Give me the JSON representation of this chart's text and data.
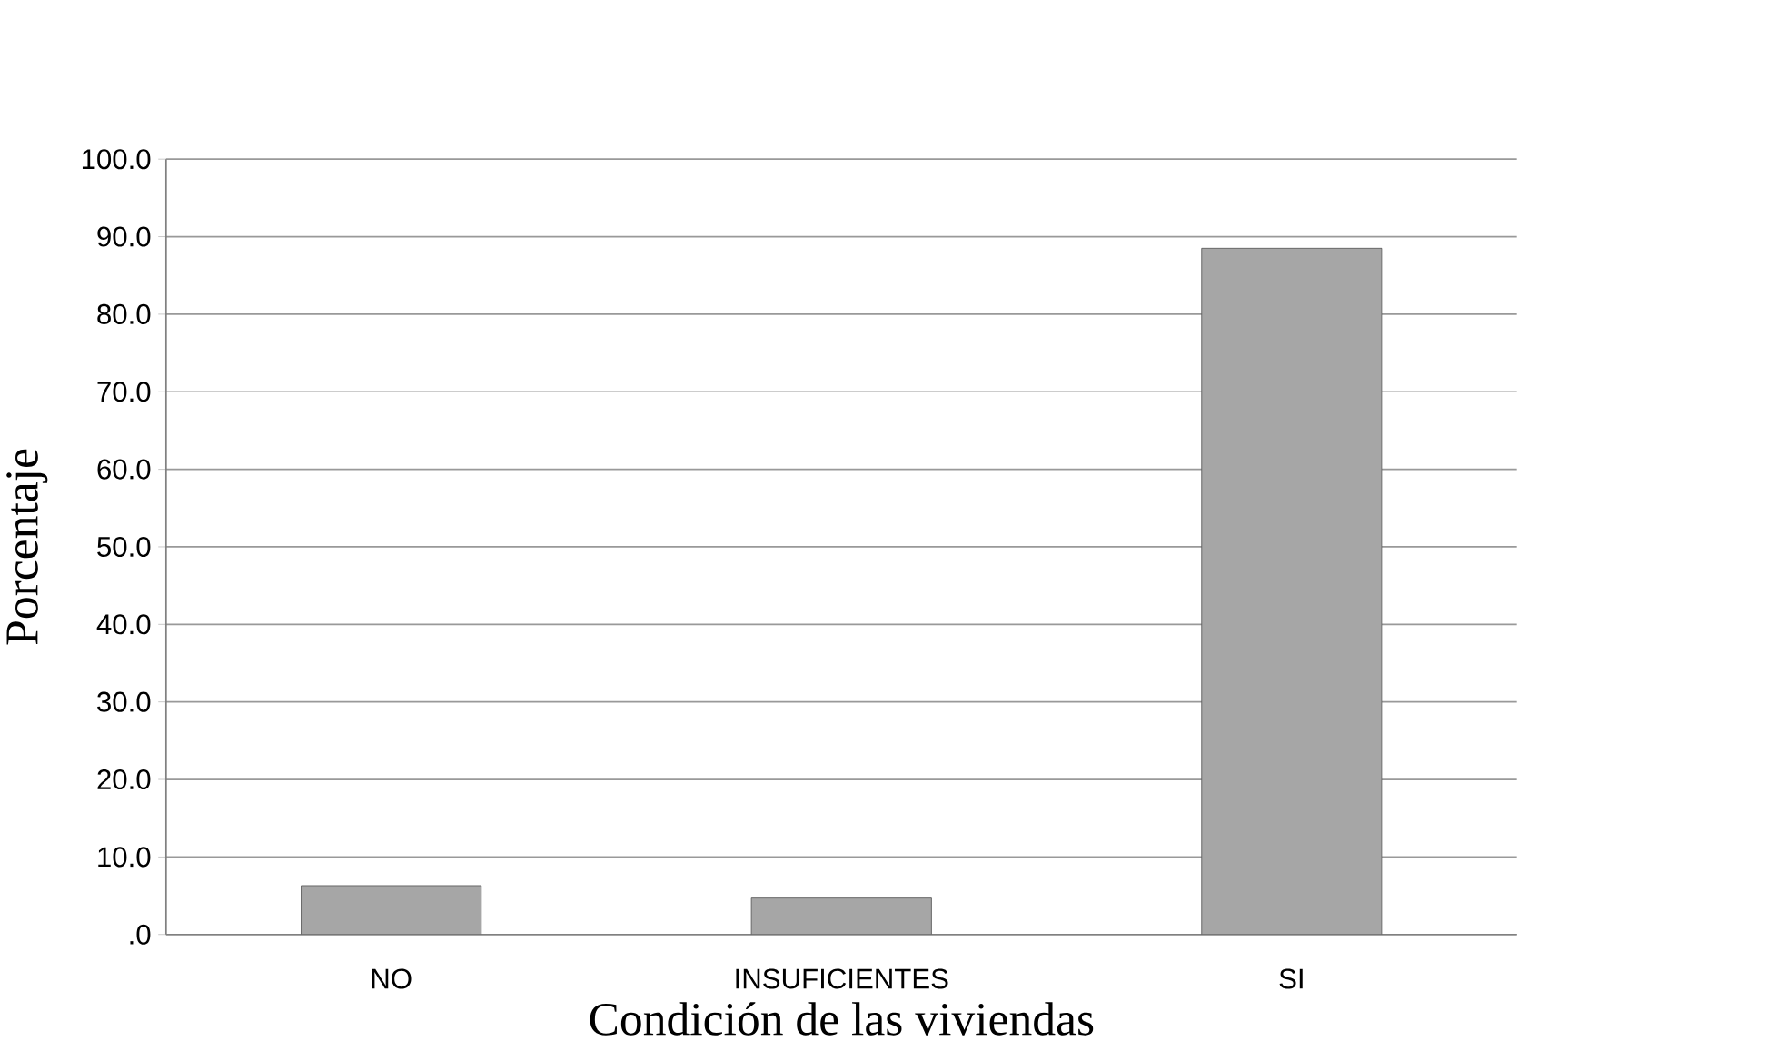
{
  "chart_data": {
    "type": "bar",
    "xlabel": "Condición de las viviendas",
    "ylabel": "Porcentaje",
    "categories": [
      "NO",
      "INSUFICIENTES",
      "SI"
    ],
    "values": [
      6.3,
      4.7,
      88.5
    ],
    "color": "#a6a6a6",
    "ylim": [
      0,
      100
    ],
    "yticks": [
      {
        "value": 0,
        "label": ".0"
      },
      {
        "value": 10,
        "label": "10.0"
      },
      {
        "value": 20,
        "label": "20.0"
      },
      {
        "value": 30,
        "label": "30.0"
      },
      {
        "value": 40,
        "label": "40.0"
      },
      {
        "value": 50,
        "label": "50.0"
      },
      {
        "value": 60,
        "label": "60.0"
      },
      {
        "value": 70,
        "label": "70.0"
      },
      {
        "value": 80,
        "label": "80.0"
      },
      {
        "value": 90,
        "label": "90.0"
      },
      {
        "value": 100,
        "label": "100.0"
      }
    ],
    "grid": "y"
  }
}
